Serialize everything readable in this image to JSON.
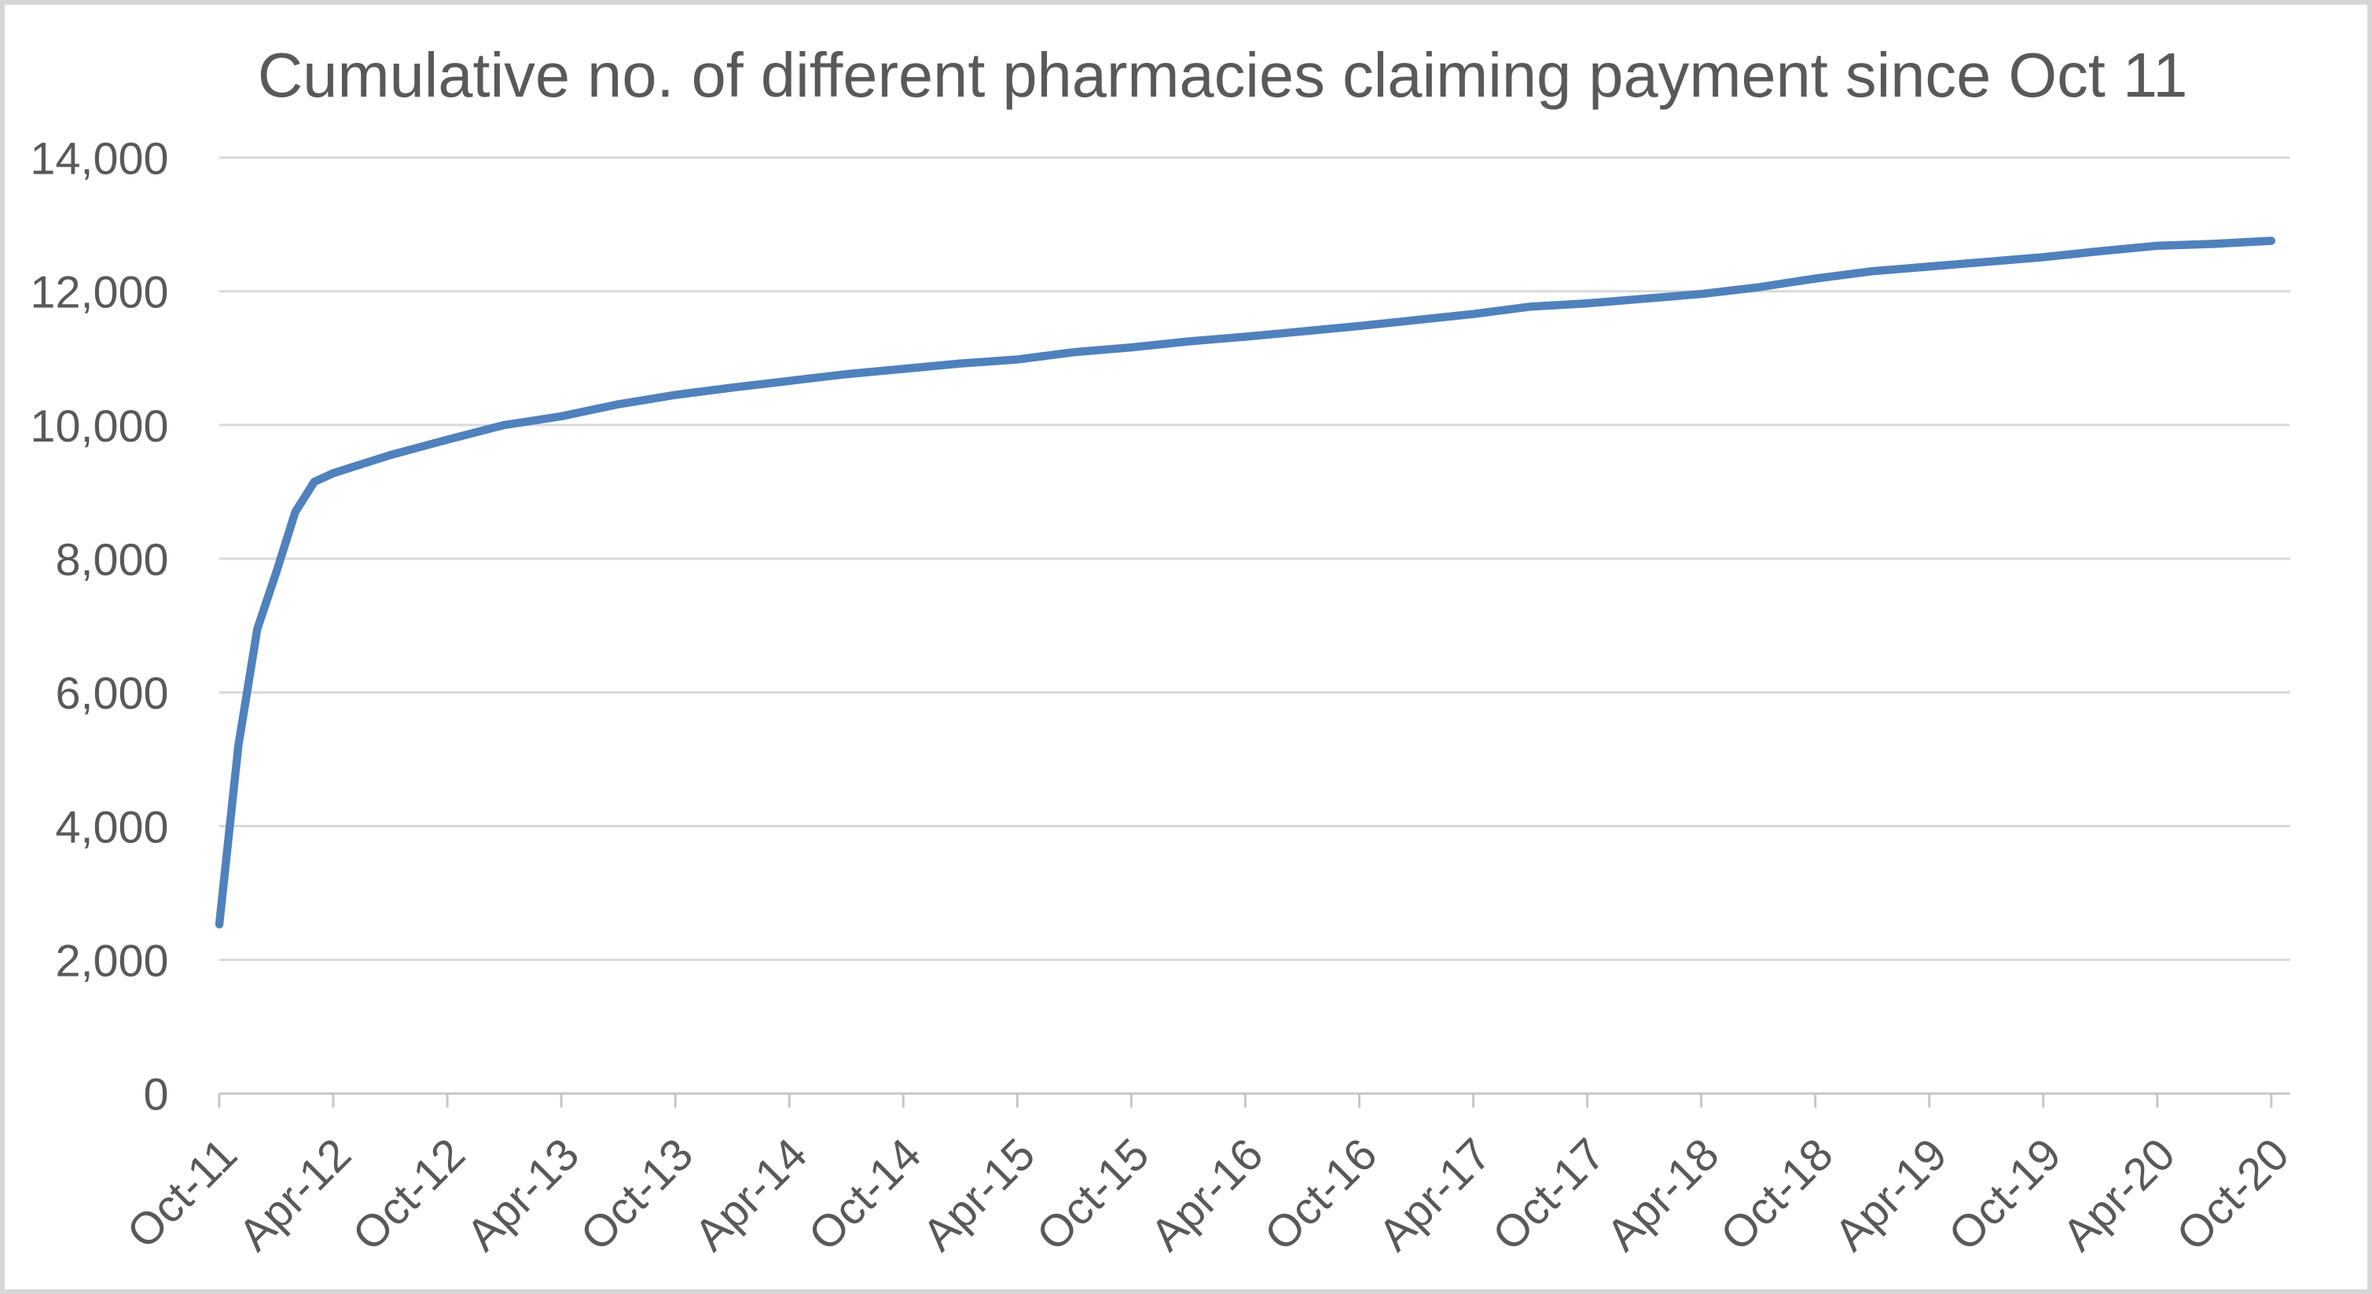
{
  "chart_data": {
    "type": "line",
    "title": "Cumulative no. of different pharmacies claiming payment since Oct 11",
    "xlabel": "",
    "ylabel": "",
    "ylim": [
      0,
      14000
    ],
    "xlim_months_since_oct_2011": [
      0,
      108
    ],
    "grid": true,
    "legend": false,
    "x_tick_interval_months": 6,
    "x_tick_labels": [
      "Oct-11",
      "Apr-12",
      "Oct-12",
      "Apr-13",
      "Oct-13",
      "Apr-14",
      "Oct-14",
      "Apr-15",
      "Oct-15",
      "Apr-16",
      "Oct-16",
      "Apr-17",
      "Oct-17",
      "Apr-18",
      "Oct-18",
      "Apr-19",
      "Oct-19",
      "Apr-20",
      "Oct-20"
    ],
    "y_ticks": [
      {
        "value": 0,
        "label": "0"
      },
      {
        "value": 2000,
        "label": "2,000"
      },
      {
        "value": 4000,
        "label": "4,000"
      },
      {
        "value": 6000,
        "label": "6,000"
      },
      {
        "value": 8000,
        "label": "8,000"
      },
      {
        "value": 10000,
        "label": "10,000"
      },
      {
        "value": 12000,
        "label": "12,000"
      },
      {
        "value": 14000,
        "label": "14,000"
      }
    ],
    "series": [
      {
        "name": "Cumulative no. of different pharmacies claiming payment",
        "color": "#4F81BD",
        "points_months_value": [
          [
            0,
            2530
          ],
          [
            1,
            5200
          ],
          [
            2,
            6950
          ],
          [
            3,
            7800
          ],
          [
            4,
            8700
          ],
          [
            5,
            9150
          ],
          [
            6,
            9280
          ],
          [
            9,
            9550
          ],
          [
            12,
            9780
          ],
          [
            15,
            10000
          ],
          [
            18,
            10130
          ],
          [
            21,
            10310
          ],
          [
            24,
            10450
          ],
          [
            27,
            10560
          ],
          [
            30,
            10660
          ],
          [
            33,
            10760
          ],
          [
            36,
            10840
          ],
          [
            39,
            10920
          ],
          [
            42,
            10980
          ],
          [
            45,
            11090
          ],
          [
            48,
            11160
          ],
          [
            51,
            11250
          ],
          [
            54,
            11320
          ],
          [
            57,
            11400
          ],
          [
            60,
            11480
          ],
          [
            63,
            11570
          ],
          [
            66,
            11660
          ],
          [
            69,
            11770
          ],
          [
            72,
            11820
          ],
          [
            75,
            11890
          ],
          [
            78,
            11960
          ],
          [
            81,
            12060
          ],
          [
            84,
            12190
          ],
          [
            87,
            12300
          ],
          [
            90,
            12370
          ],
          [
            93,
            12440
          ],
          [
            96,
            12510
          ],
          [
            99,
            12600
          ],
          [
            102,
            12680
          ],
          [
            105,
            12710
          ],
          [
            108,
            12755
          ]
        ]
      }
    ],
    "colors": {
      "line": "#4F81BD",
      "gridline": "#D9D9D9",
      "axis": "#C6C6C6",
      "text": "#595959",
      "frame": "#D6D6D6",
      "background": "#FFFFFF"
    }
  }
}
